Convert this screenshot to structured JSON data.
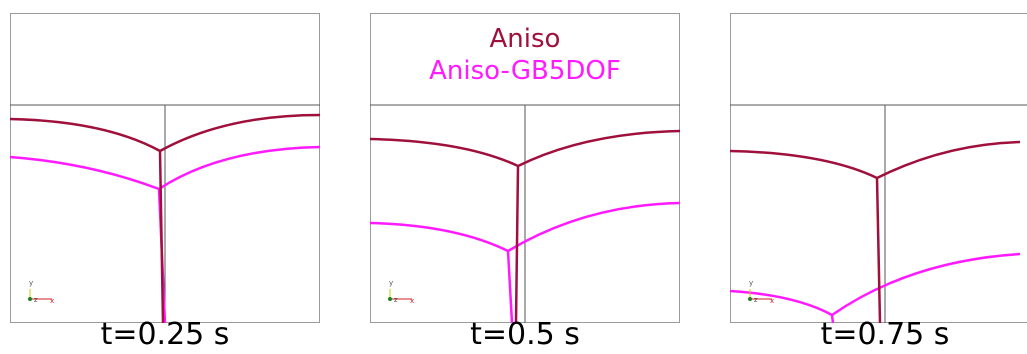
{
  "legend": [
    {
      "label": "Aniso",
      "color": "#a0103c"
    },
    {
      "label": "Aniso-GB5DOF",
      "color": "#ff1aff"
    }
  ],
  "panels": [
    {
      "caption": "t=0.25 s"
    },
    {
      "caption": "t=0.5 s"
    },
    {
      "caption": "t=0.75 s"
    }
  ],
  "triad": {
    "y_label": "y",
    "x_label": "x",
    "z_label": "z"
  },
  "colors": {
    "aniso": "#a0103c",
    "gb5dof": "#ff1aff",
    "frame": "#888888",
    "axis_line": "#555555"
  }
}
